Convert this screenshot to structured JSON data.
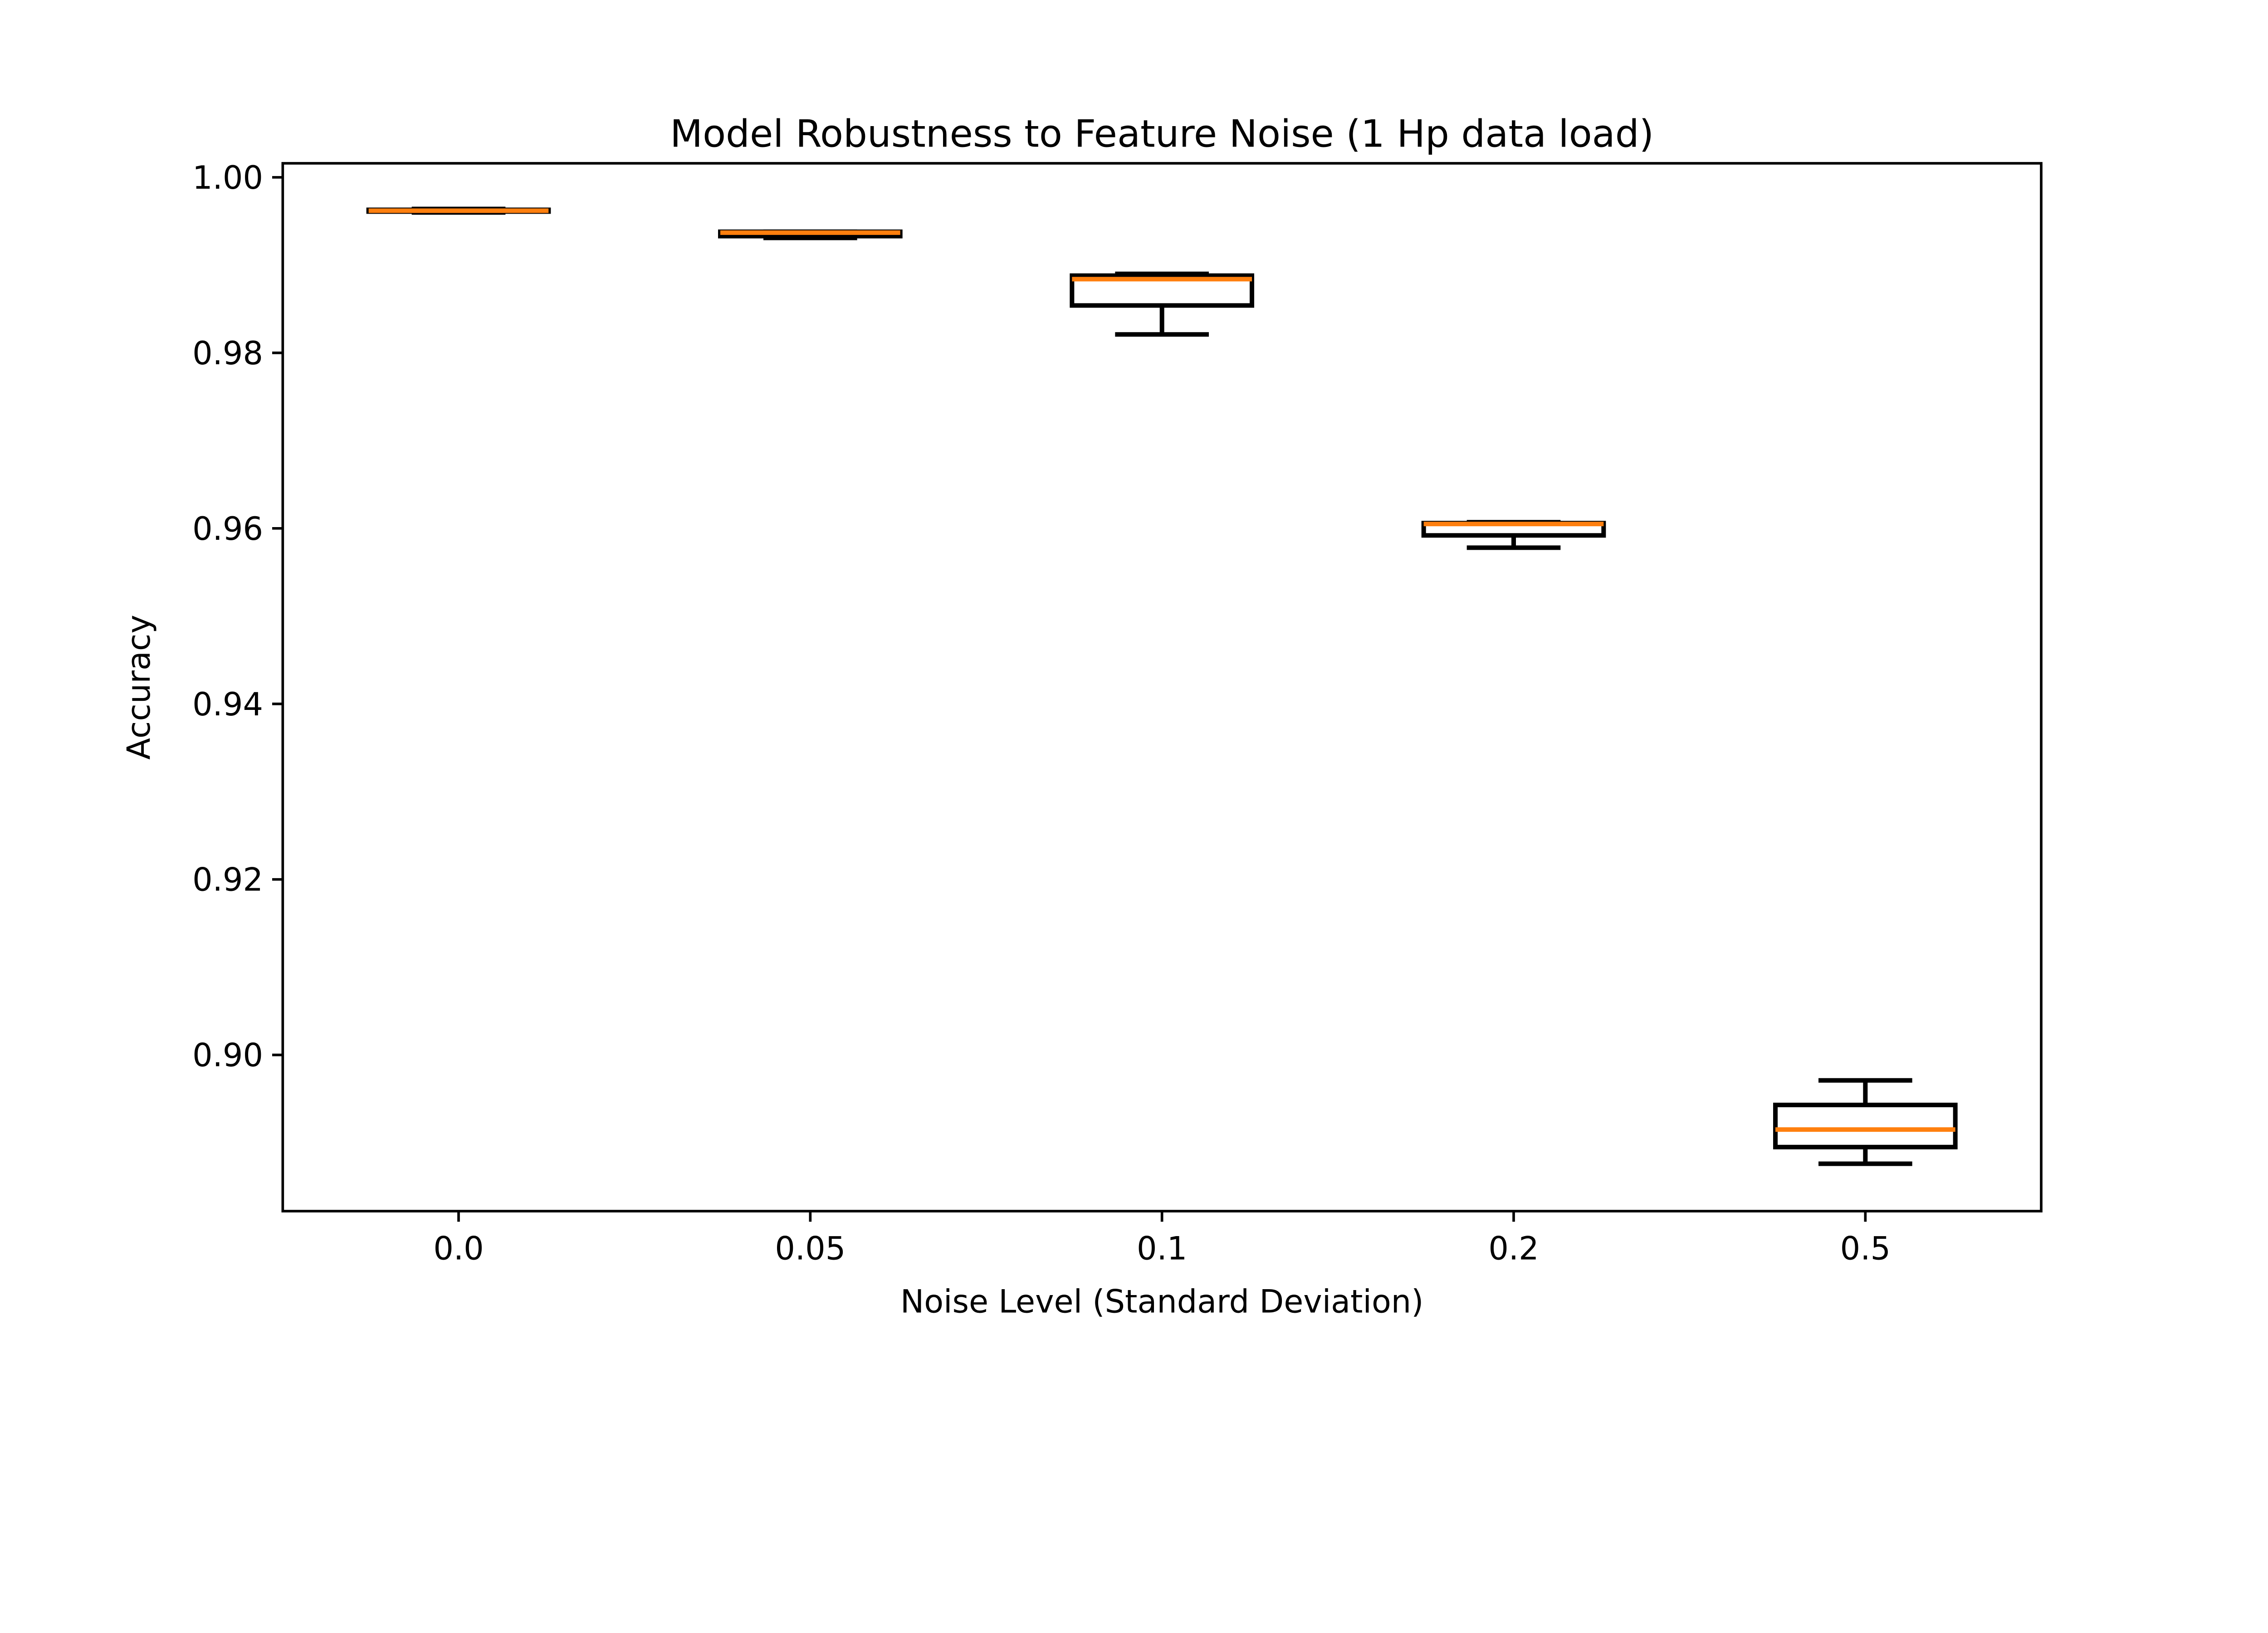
{
  "figure": {
    "background_color": "#ffffff",
    "frame_color": "#000000"
  },
  "chart_data": {
    "type": "boxplot",
    "title": "Model Robustness to Feature Noise (1 Hp data load)",
    "xlabel": "Noise Level (Standard Deviation)",
    "ylabel": "Accuracy",
    "categories": [
      "0.0",
      "0.05",
      "0.1",
      "0.2",
      "0.5"
    ],
    "y_tick_values": [
      1.0,
      0.98,
      0.96,
      0.94,
      0.92,
      0.9
    ],
    "y_tick_labels": [
      "1.00",
      "0.98",
      "0.96",
      "0.94",
      "0.92",
      "0.90"
    ],
    "ylim": [
      0.8822,
      1.0016
    ],
    "xlim": [
      0.5,
      5.5
    ],
    "grid": false,
    "legend": "none",
    "median_color": "#ff7f0e",
    "box_edge_color": "#000000",
    "series": [
      {
        "category": "0.0",
        "min": 0.996,
        "q1": 0.9961,
        "median": 0.9962,
        "q3": 0.9963,
        "max": 0.9964
      },
      {
        "category": "0.05",
        "min": 0.9931,
        "q1": 0.9933,
        "median": 0.9937,
        "q3": 0.9938,
        "max": 0.9938
      },
      {
        "category": "0.1",
        "min": 0.9821,
        "q1": 0.9854,
        "median": 0.9884,
        "q3": 0.9888,
        "max": 0.989
      },
      {
        "category": "0.2",
        "min": 0.9578,
        "q1": 0.9592,
        "median": 0.9605,
        "q3": 0.9606,
        "max": 0.9607
      },
      {
        "category": "0.5",
        "min": 0.8876,
        "q1": 0.8895,
        "median": 0.8915,
        "q3": 0.8943,
        "max": 0.8971
      }
    ]
  }
}
